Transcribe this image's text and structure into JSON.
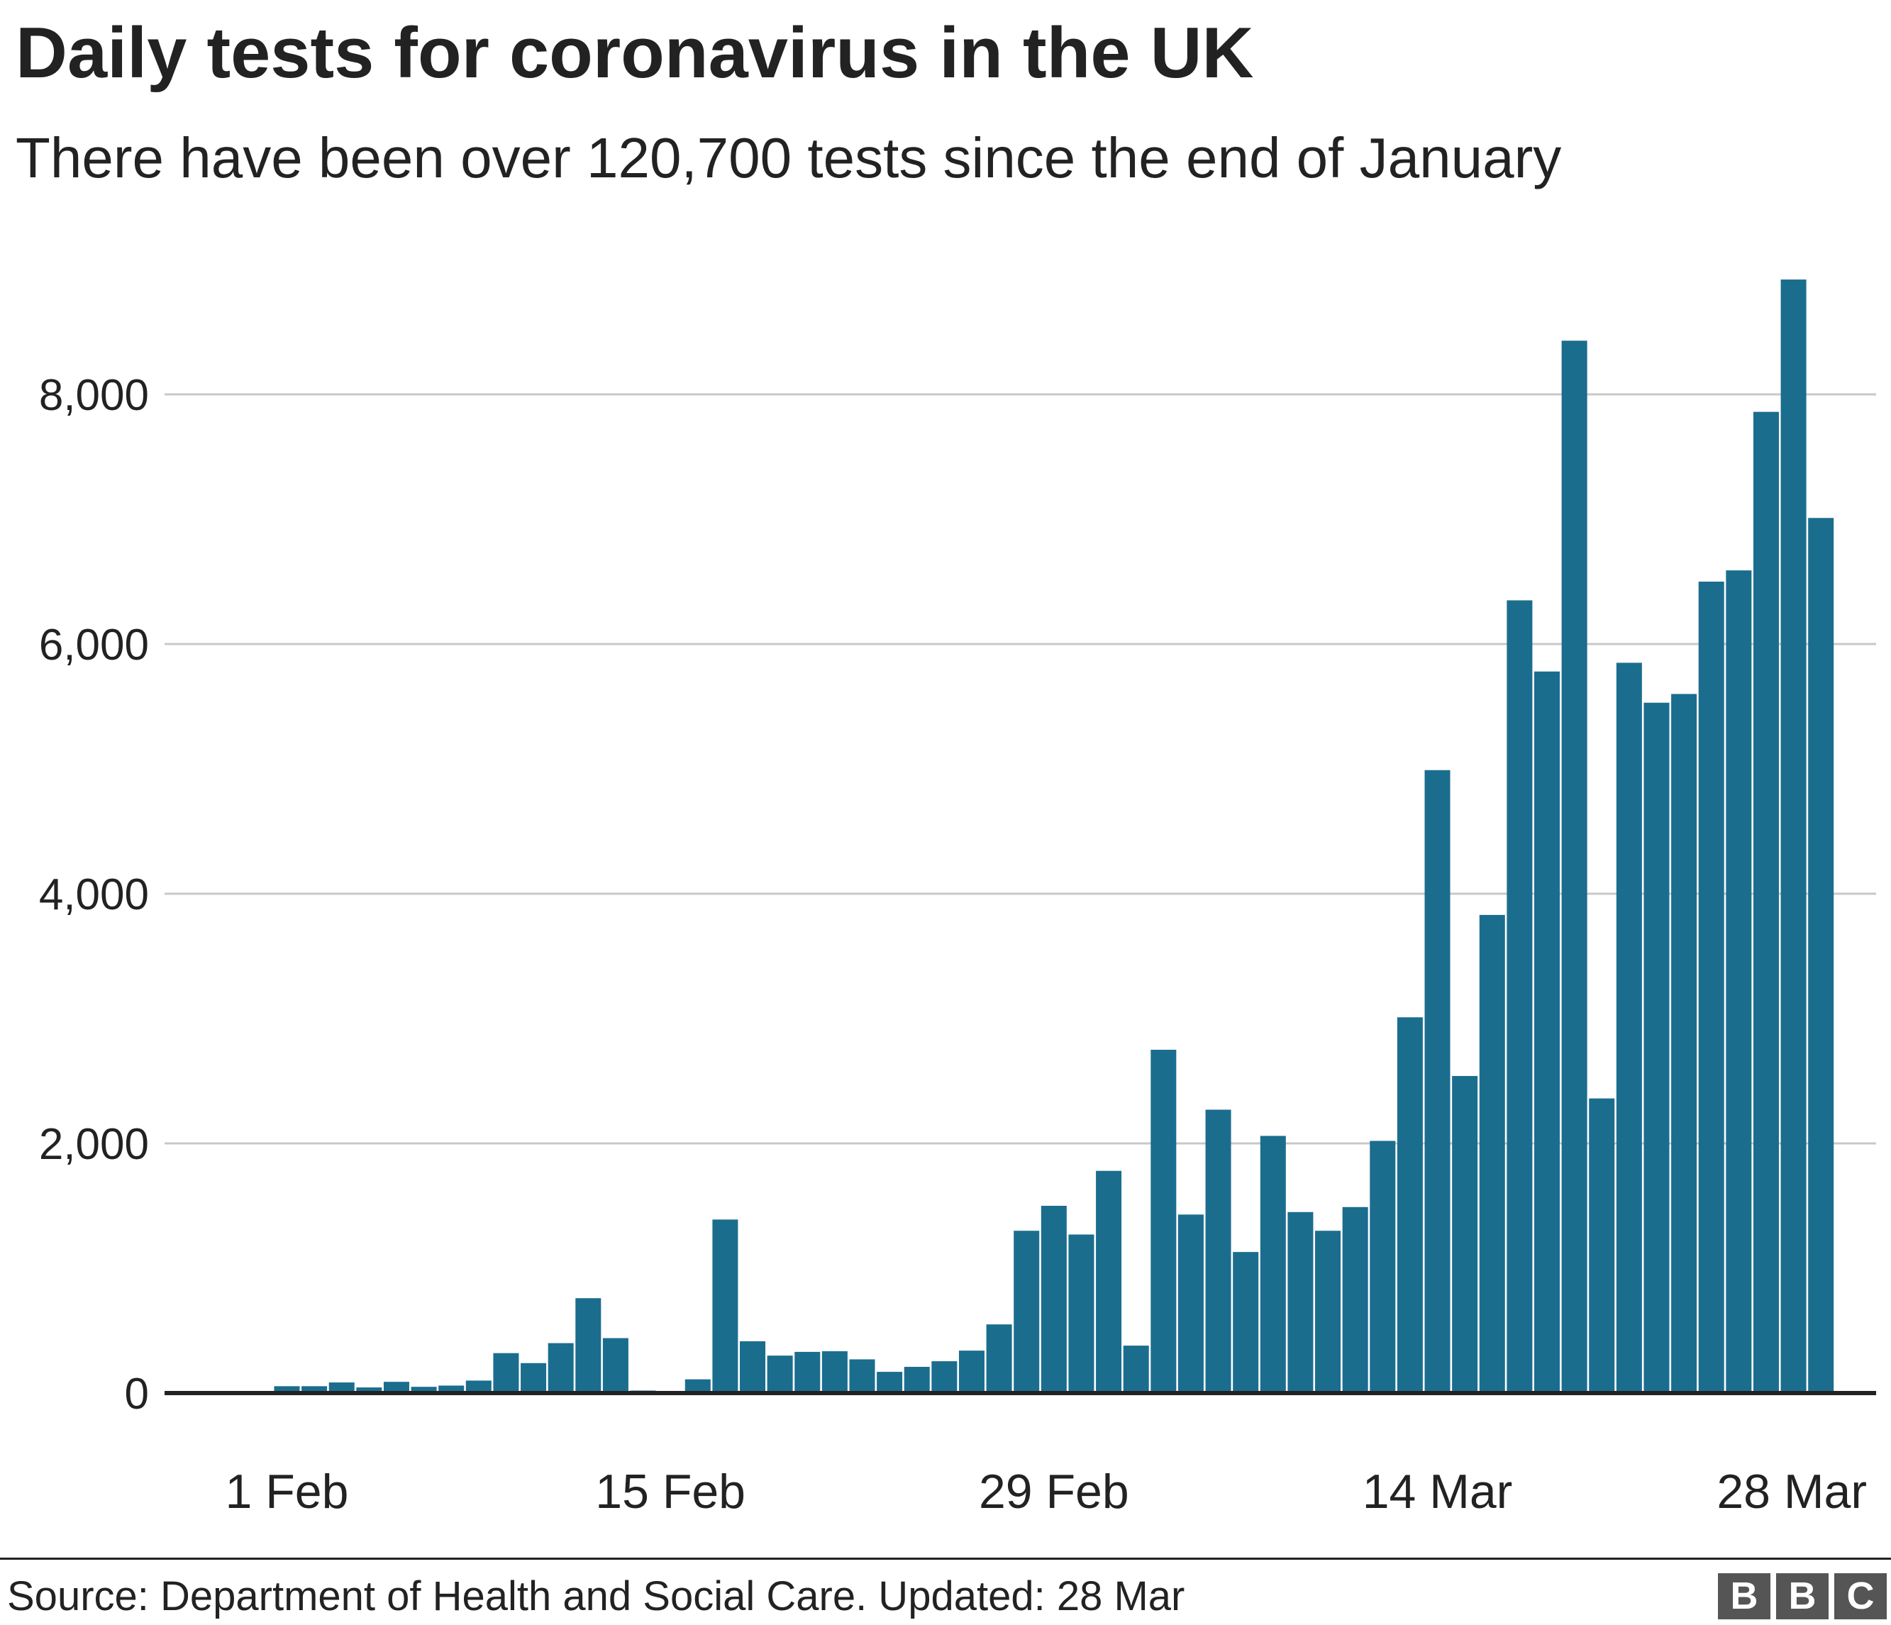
{
  "title": "Daily tests for coronavirus in the UK",
  "subtitle": "There have been over 120,700 tests since the end of January",
  "source": "Source: Department of Health and Social Care. Updated: 28 Mar",
  "logo": [
    "B",
    "B",
    "C"
  ],
  "colors": {
    "bar": "#1b6d8e",
    "grid": "#c8c8c8",
    "axis": "#222222",
    "text": "#222222"
  },
  "chart_data": {
    "type": "bar",
    "grid": true,
    "ylim": [
      0,
      9000
    ],
    "y_ticks": [
      0,
      2000,
      4000,
      6000,
      8000
    ],
    "y_tick_labels": [
      "0",
      "2,000",
      "4,000",
      "6,000",
      "8,000"
    ],
    "x_tick_labels": [
      {
        "label": "1 Feb",
        "category": "1 Feb"
      },
      {
        "label": "15 Feb",
        "category": "15 Feb"
      },
      {
        "label": "29 Feb",
        "category": "29 Feb"
      },
      {
        "label": "14 Mar",
        "category": "14 Mar"
      },
      {
        "label": "28 Mar",
        "category": "28 Mar"
      }
    ],
    "categories": [
      "28 Jan",
      "29 Jan",
      "30 Jan",
      "31 Jan",
      "1 Feb",
      "2 Feb",
      "3 Feb",
      "4 Feb",
      "5 Feb",
      "6 Feb",
      "7 Feb",
      "8 Feb",
      "9 Feb",
      "10 Feb",
      "11 Feb",
      "12 Feb",
      "13 Feb",
      "14 Feb",
      "15 Feb",
      "16 Feb",
      "17 Feb",
      "18 Feb",
      "19 Feb",
      "20 Feb",
      "21 Feb",
      "22 Feb",
      "23 Feb",
      "24 Feb",
      "25 Feb",
      "26 Feb",
      "27 Feb",
      "28 Feb",
      "29 Feb",
      "1 Mar",
      "2 Mar",
      "3 Mar",
      "4 Mar",
      "5 Mar",
      "6 Mar",
      "7 Mar",
      "8 Mar",
      "9 Mar",
      "10 Mar",
      "11 Mar",
      "12 Mar",
      "13 Mar",
      "14 Mar",
      "15 Mar",
      "16 Mar",
      "17 Mar",
      "18 Mar",
      "19 Mar",
      "20 Mar",
      "21 Mar",
      "22 Mar",
      "23 Mar",
      "24 Mar",
      "25 Mar",
      "26 Mar",
      "27 Mar",
      "28 Mar"
    ],
    "values": [
      0,
      0,
      0,
      10,
      55,
      55,
      85,
      45,
      90,
      50,
      60,
      100,
      320,
      240,
      400,
      760,
      440,
      20,
      0,
      110,
      1390,
      415,
      300,
      330,
      335,
      270,
      170,
      210,
      255,
      340,
      550,
      1300,
      1500,
      1270,
      1780,
      380,
      2750,
      1430,
      2270,
      1130,
      2060,
      1450,
      1300,
      1490,
      2020,
      3010,
      4990,
      2540,
      3830,
      6350,
      5780,
      8430,
      2360,
      5850,
      5530,
      5600,
      6500,
      6590,
      7860,
      8920,
      7010
    ]
  }
}
